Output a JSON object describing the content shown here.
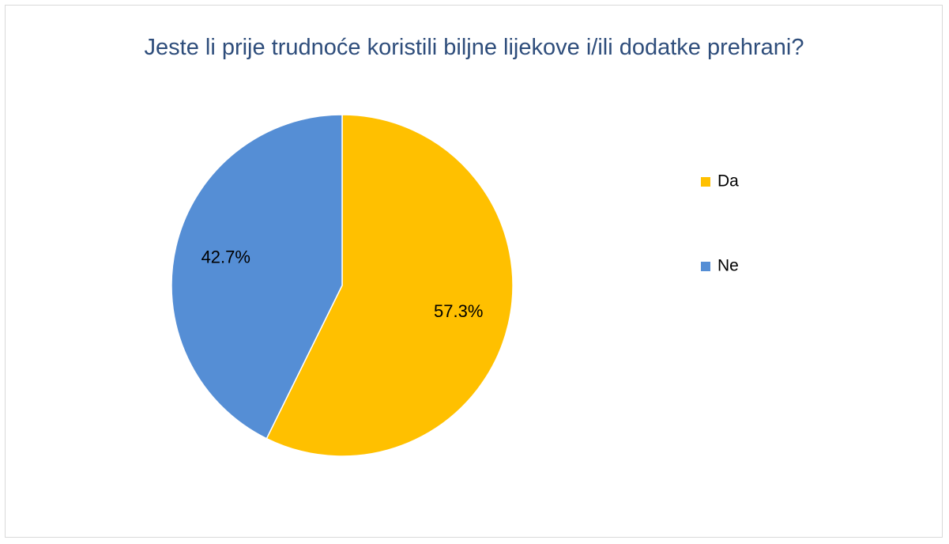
{
  "chart_data": {
    "type": "pie",
    "title": "Jeste li prije trudnoće koristili biljne lijekove i/ili dodatke prehrani?",
    "categories": [
      "Da",
      "Ne"
    ],
    "values": [
      57.3,
      42.7
    ],
    "value_labels": [
      "57.3%",
      "42.7%"
    ],
    "colors": [
      "#FFC000",
      "#558ED5"
    ],
    "legend": "right"
  }
}
